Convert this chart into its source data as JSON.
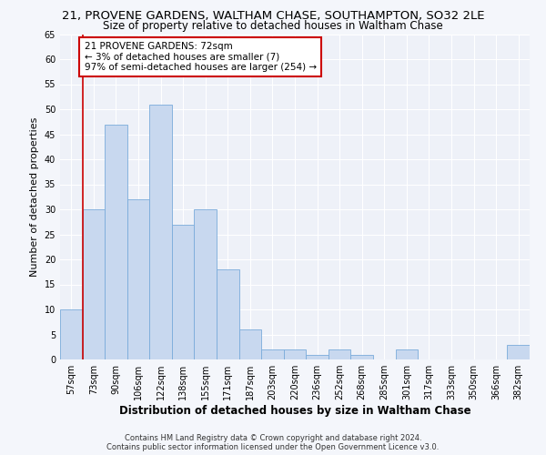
{
  "title": "21, PROVENE GARDENS, WALTHAM CHASE, SOUTHAMPTON, SO32 2LE",
  "subtitle": "Size of property relative to detached houses in Waltham Chase",
  "xlabel": "Distribution of detached houses by size in Waltham Chase",
  "ylabel": "Number of detached properties",
  "categories": [
    "57sqm",
    "73sqm",
    "90sqm",
    "106sqm",
    "122sqm",
    "138sqm",
    "155sqm",
    "171sqm",
    "187sqm",
    "203sqm",
    "220sqm",
    "236sqm",
    "252sqm",
    "268sqm",
    "285sqm",
    "301sqm",
    "317sqm",
    "333sqm",
    "350sqm",
    "366sqm",
    "382sqm"
  ],
  "values": [
    10,
    30,
    47,
    32,
    51,
    27,
    30,
    18,
    6,
    2,
    2,
    1,
    2,
    1,
    0,
    2,
    0,
    0,
    0,
    0,
    3
  ],
  "bar_color": "#c8d8ef",
  "bar_edge_color": "#7aabdb",
  "highlight_line_color": "#cc0000",
  "annotation_text": "21 PROVENE GARDENS: 72sqm\n← 3% of detached houses are smaller (7)\n97% of semi-detached houses are larger (254) →",
  "annotation_box_color": "white",
  "annotation_box_edge": "#cc0000",
  "ylim": [
    0,
    65
  ],
  "yticks": [
    0,
    5,
    10,
    15,
    20,
    25,
    30,
    35,
    40,
    45,
    50,
    55,
    60,
    65
  ],
  "footer": "Contains HM Land Registry data © Crown copyright and database right 2024.\nContains public sector information licensed under the Open Government Licence v3.0.",
  "bg_color": "#f4f6fb",
  "plot_bg_color": "#eef1f8",
  "grid_color": "#ffffff",
  "title_fontsize": 9.5,
  "subtitle_fontsize": 8.5,
  "ylabel_fontsize": 8,
  "xlabel_fontsize": 8.5,
  "tick_fontsize": 7,
  "footer_fontsize": 6,
  "annotation_fontsize": 7.5
}
